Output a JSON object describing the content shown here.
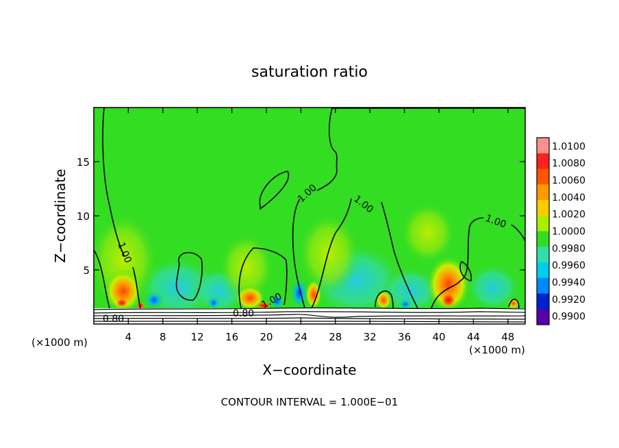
{
  "chart_data": {
    "type": "heatmap",
    "title": "saturation ratio",
    "xlabel": "X−coordinate",
    "ylabel": "Z−coordinate",
    "x_unit_left": "(×1000 m)",
    "x_unit_right": "(×1000 m)",
    "xlim": [
      0,
      50
    ],
    "ylim": [
      0,
      20
    ],
    "x_ticks": [
      4,
      8,
      12,
      16,
      20,
      24,
      28,
      32,
      36,
      40,
      44,
      48
    ],
    "y_ticks": [
      5,
      10,
      15
    ],
    "footer": "CONTOUR INTERVAL = 1.000E−01",
    "colorbar": {
      "levels": [
        "1.0100",
        "1.0080",
        "1.0060",
        "1.0040",
        "1.0020",
        "1.0000",
        "0.9980",
        "0.9960",
        "0.9940",
        "0.9920",
        "0.9900"
      ],
      "colors": [
        "#ff9090",
        "#ff2020",
        "#ff5500",
        "#ff9900",
        "#ffcc00",
        "#aaee00",
        "#33dd22",
        "#33ddaa",
        "#00ccee",
        "#0088ff",
        "#0022cc",
        "#5500aa"
      ]
    },
    "contour_labels": [
      "1.00",
      "1.00",
      "1.00",
      "1.00",
      "1.00",
      "0.80",
      "0.80"
    ]
  }
}
